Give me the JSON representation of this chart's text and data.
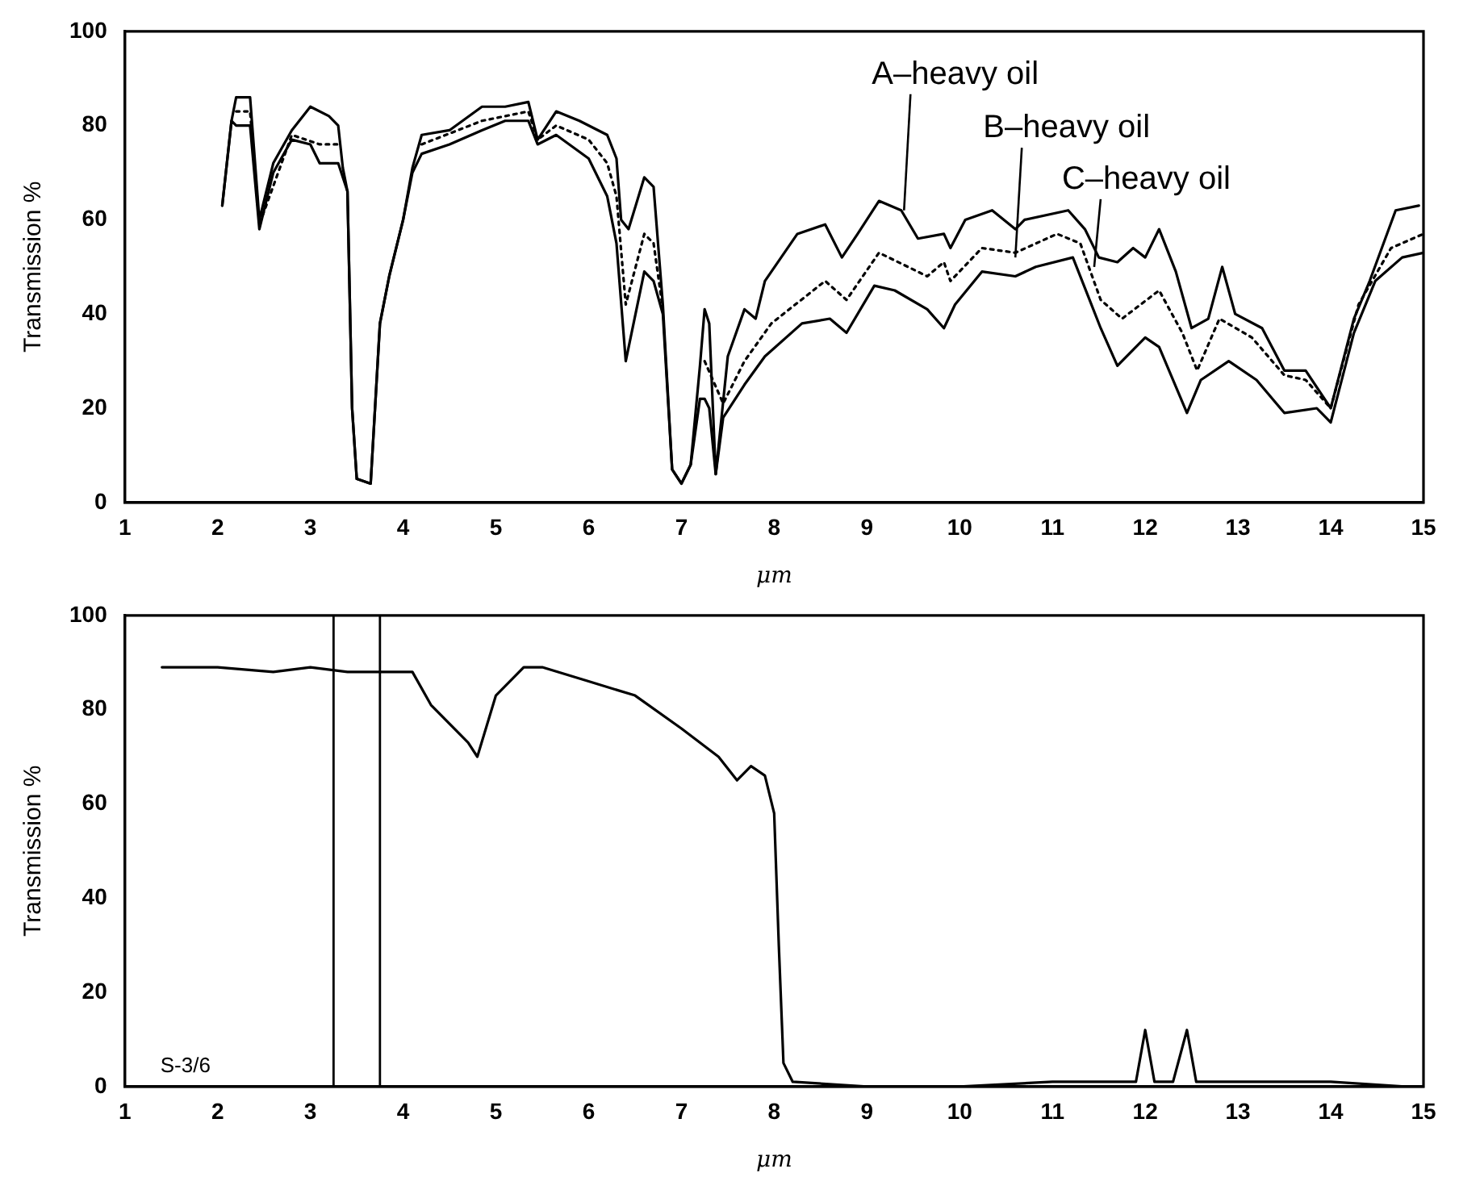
{
  "chart_data": [
    {
      "type": "line",
      "xlabel": "μm",
      "ylabel": "Transmission %",
      "xlim": [
        1,
        15
      ],
      "ylim": [
        0,
        100
      ],
      "xticks": [
        1,
        2,
        3,
        4,
        5,
        6,
        7,
        8,
        9,
        10,
        11,
        12,
        13,
        14,
        15
      ],
      "yticks": [
        0,
        20,
        40,
        60,
        80,
        100
      ],
      "grid": false,
      "legend": false,
      "marker": "none",
      "series": [
        {
          "color": "#000000",
          "line_style": "solid",
          "x": [
            2.05,
            2.15,
            2.2,
            2.35,
            2.45,
            2.6,
            2.8,
            3.0,
            3.2,
            3.3,
            3.35,
            3.4,
            3.45,
            3.5,
            3.65,
            3.75,
            3.85,
            4.0,
            4.1,
            4.2,
            4.5,
            4.85,
            5.1,
            5.35,
            5.45,
            5.65,
            5.9,
            6.2,
            6.3,
            6.35,
            6.43,
            6.6,
            6.7,
            6.8,
            6.9,
            7.0,
            7.1,
            7.2,
            7.25,
            7.3,
            7.37,
            7.5,
            7.68,
            7.8,
            7.9,
            8.25,
            8.55,
            8.73,
            8.9,
            9.13,
            9.37,
            9.55,
            9.83,
            9.9,
            10.06,
            10.35,
            10.6,
            10.7,
            11.17,
            11.35,
            11.5,
            11.7,
            11.87,
            12.0,
            12.15,
            12.33,
            12.5,
            12.68,
            12.83,
            12.97,
            13.26,
            13.5,
            13.73,
            14.0,
            14.25,
            14.42,
            14.7,
            14.95
          ],
          "values": [
            63,
            81,
            86,
            86,
            60,
            72,
            79,
            84,
            82,
            80,
            71,
            66,
            20,
            5,
            4,
            38,
            48,
            60,
            71,
            78,
            79,
            84,
            84,
            85,
            77,
            83,
            81,
            78,
            73,
            60,
            58,
            69,
            67,
            42,
            7,
            4,
            8,
            29,
            41,
            38,
            6,
            31,
            41,
            39,
            47,
            57,
            59,
            52,
            57,
            64,
            62,
            56,
            57,
            54,
            60,
            62,
            58,
            60,
            62,
            58,
            52,
            51,
            54,
            52,
            58,
            49,
            37,
            39,
            50,
            40,
            37,
            28,
            28,
            20,
            39,
            47,
            62,
            63
          ]
        },
        {
          "color": "#000000",
          "line_style": "dotted",
          "x": [
            2.2,
            2.35,
            2.45,
            2.8,
            3.1,
            3.3,
            3.8,
            4.2,
            4.85,
            5.35,
            5.45,
            5.65,
            6.0,
            6.2,
            6.3,
            6.4,
            6.6,
            6.7,
            6.8,
            7.0,
            7.25,
            7.45,
            7.68,
            7.97,
            8.55,
            8.78,
            9.13,
            9.65,
            9.83,
            9.9,
            10.24,
            10.6,
            11.05,
            11.3,
            11.52,
            11.75,
            12.15,
            12.4,
            12.56,
            12.8,
            13.15,
            13.5,
            13.73,
            14.0,
            14.3,
            14.65,
            15.0
          ],
          "values": [
            83,
            83,
            59,
            78,
            76,
            76,
            null,
            76,
            81,
            83,
            77,
            80,
            77,
            72,
            65,
            42,
            57,
            55,
            41,
            null,
            30,
            21,
            30,
            38,
            47,
            43,
            53,
            48,
            51,
            47,
            54,
            53,
            57,
            55,
            43,
            39,
            45,
            36,
            28,
            39,
            35,
            27,
            26,
            20,
            42,
            54,
            57
          ]
        },
        {
          "color": "#000000",
          "line_style": "solid",
          "x": [
            2.05,
            2.15,
            2.2,
            2.35,
            2.45,
            2.6,
            2.8,
            3.0,
            3.1,
            3.3,
            3.4,
            3.45,
            3.5,
            3.65,
            3.75,
            3.85,
            4.0,
            4.1,
            4.2,
            4.5,
            4.85,
            5.1,
            5.35,
            5.45,
            5.65,
            6.0,
            6.2,
            6.3,
            6.4,
            6.6,
            6.7,
            6.8,
            6.9,
            7.0,
            7.1,
            7.2,
            7.25,
            7.3,
            7.37,
            7.45,
            7.68,
            7.9,
            8.3,
            8.6,
            8.78,
            9.08,
            9.3,
            9.65,
            9.83,
            9.95,
            10.24,
            10.6,
            10.82,
            11.22,
            11.4,
            11.52,
            11.7,
            12.0,
            12.15,
            12.45,
            12.6,
            12.9,
            13.2,
            13.5,
            13.85,
            14.0,
            14.25,
            14.48,
            14.77,
            15.0
          ],
          "values": [
            63,
            81,
            80,
            80,
            58,
            70,
            77,
            76,
            72,
            72,
            66,
            20,
            5,
            4,
            38,
            48,
            60,
            70,
            74,
            76,
            79,
            81,
            81,
            76,
            78,
            73,
            65,
            55,
            30,
            49,
            47,
            40,
            7,
            4,
            8,
            22,
            22,
            20,
            6,
            18,
            25,
            31,
            38,
            39,
            36,
            46,
            45,
            41,
            37,
            42,
            49,
            48,
            50,
            52,
            43,
            37,
            29,
            35,
            33,
            19,
            26,
            30,
            26,
            19,
            20,
            17,
            36,
            47,
            52,
            53
          ]
        }
      ],
      "annotations": [
        {
          "text": "A–heavy oil",
          "x": 9.4,
          "y": 62
        },
        {
          "text": "B–heavy oil",
          "x": 10.6,
          "y": 52
        },
        {
          "text": "C–heavy oil",
          "x": 11.45,
          "y": 50
        }
      ]
    },
    {
      "type": "line",
      "xlabel": "μm",
      "ylabel": "Transmission %",
      "xlim": [
        1,
        15
      ],
      "ylim": [
        0,
        100
      ],
      "xticks": [
        1,
        2,
        3,
        4,
        5,
        6,
        7,
        8,
        9,
        10,
        11,
        12,
        13,
        14,
        15
      ],
      "yticks": [
        0,
        20,
        40,
        60,
        80,
        100
      ],
      "grid": false,
      "legend": false,
      "marker": "none",
      "series": [
        {
          "color": "#000000",
          "line_style": "solid",
          "x": [
            1.4,
            2.0,
            2.6,
            3.0,
            3.4,
            4.1,
            4.3,
            4.5,
            4.7,
            4.8,
            5.0,
            5.3,
            5.5,
            6.0,
            6.5,
            7.0,
            7.4,
            7.6,
            7.75,
            7.9,
            8.0,
            8.05,
            8.1,
            8.2,
            9.0,
            10.0,
            11.0,
            11.5,
            11.9,
            12.0,
            12.1,
            12.3,
            12.45,
            12.55,
            12.65,
            13.0,
            14.0,
            14.8
          ],
          "values": [
            89,
            89,
            88,
            89,
            88,
            88,
            81,
            77,
            73,
            70,
            83,
            89,
            89,
            86,
            83,
            76,
            70,
            65,
            68,
            66,
            58,
            30,
            5,
            1,
            0,
            0,
            1,
            1,
            1,
            12,
            1,
            1,
            12,
            1,
            1,
            1,
            1,
            0
          ]
        }
      ],
      "ref_lines": [
        {
          "axis": "x",
          "value": 3.25
        },
        {
          "axis": "x",
          "value": 3.75
        }
      ],
      "annotations": [
        "S-3/6"
      ]
    }
  ]
}
